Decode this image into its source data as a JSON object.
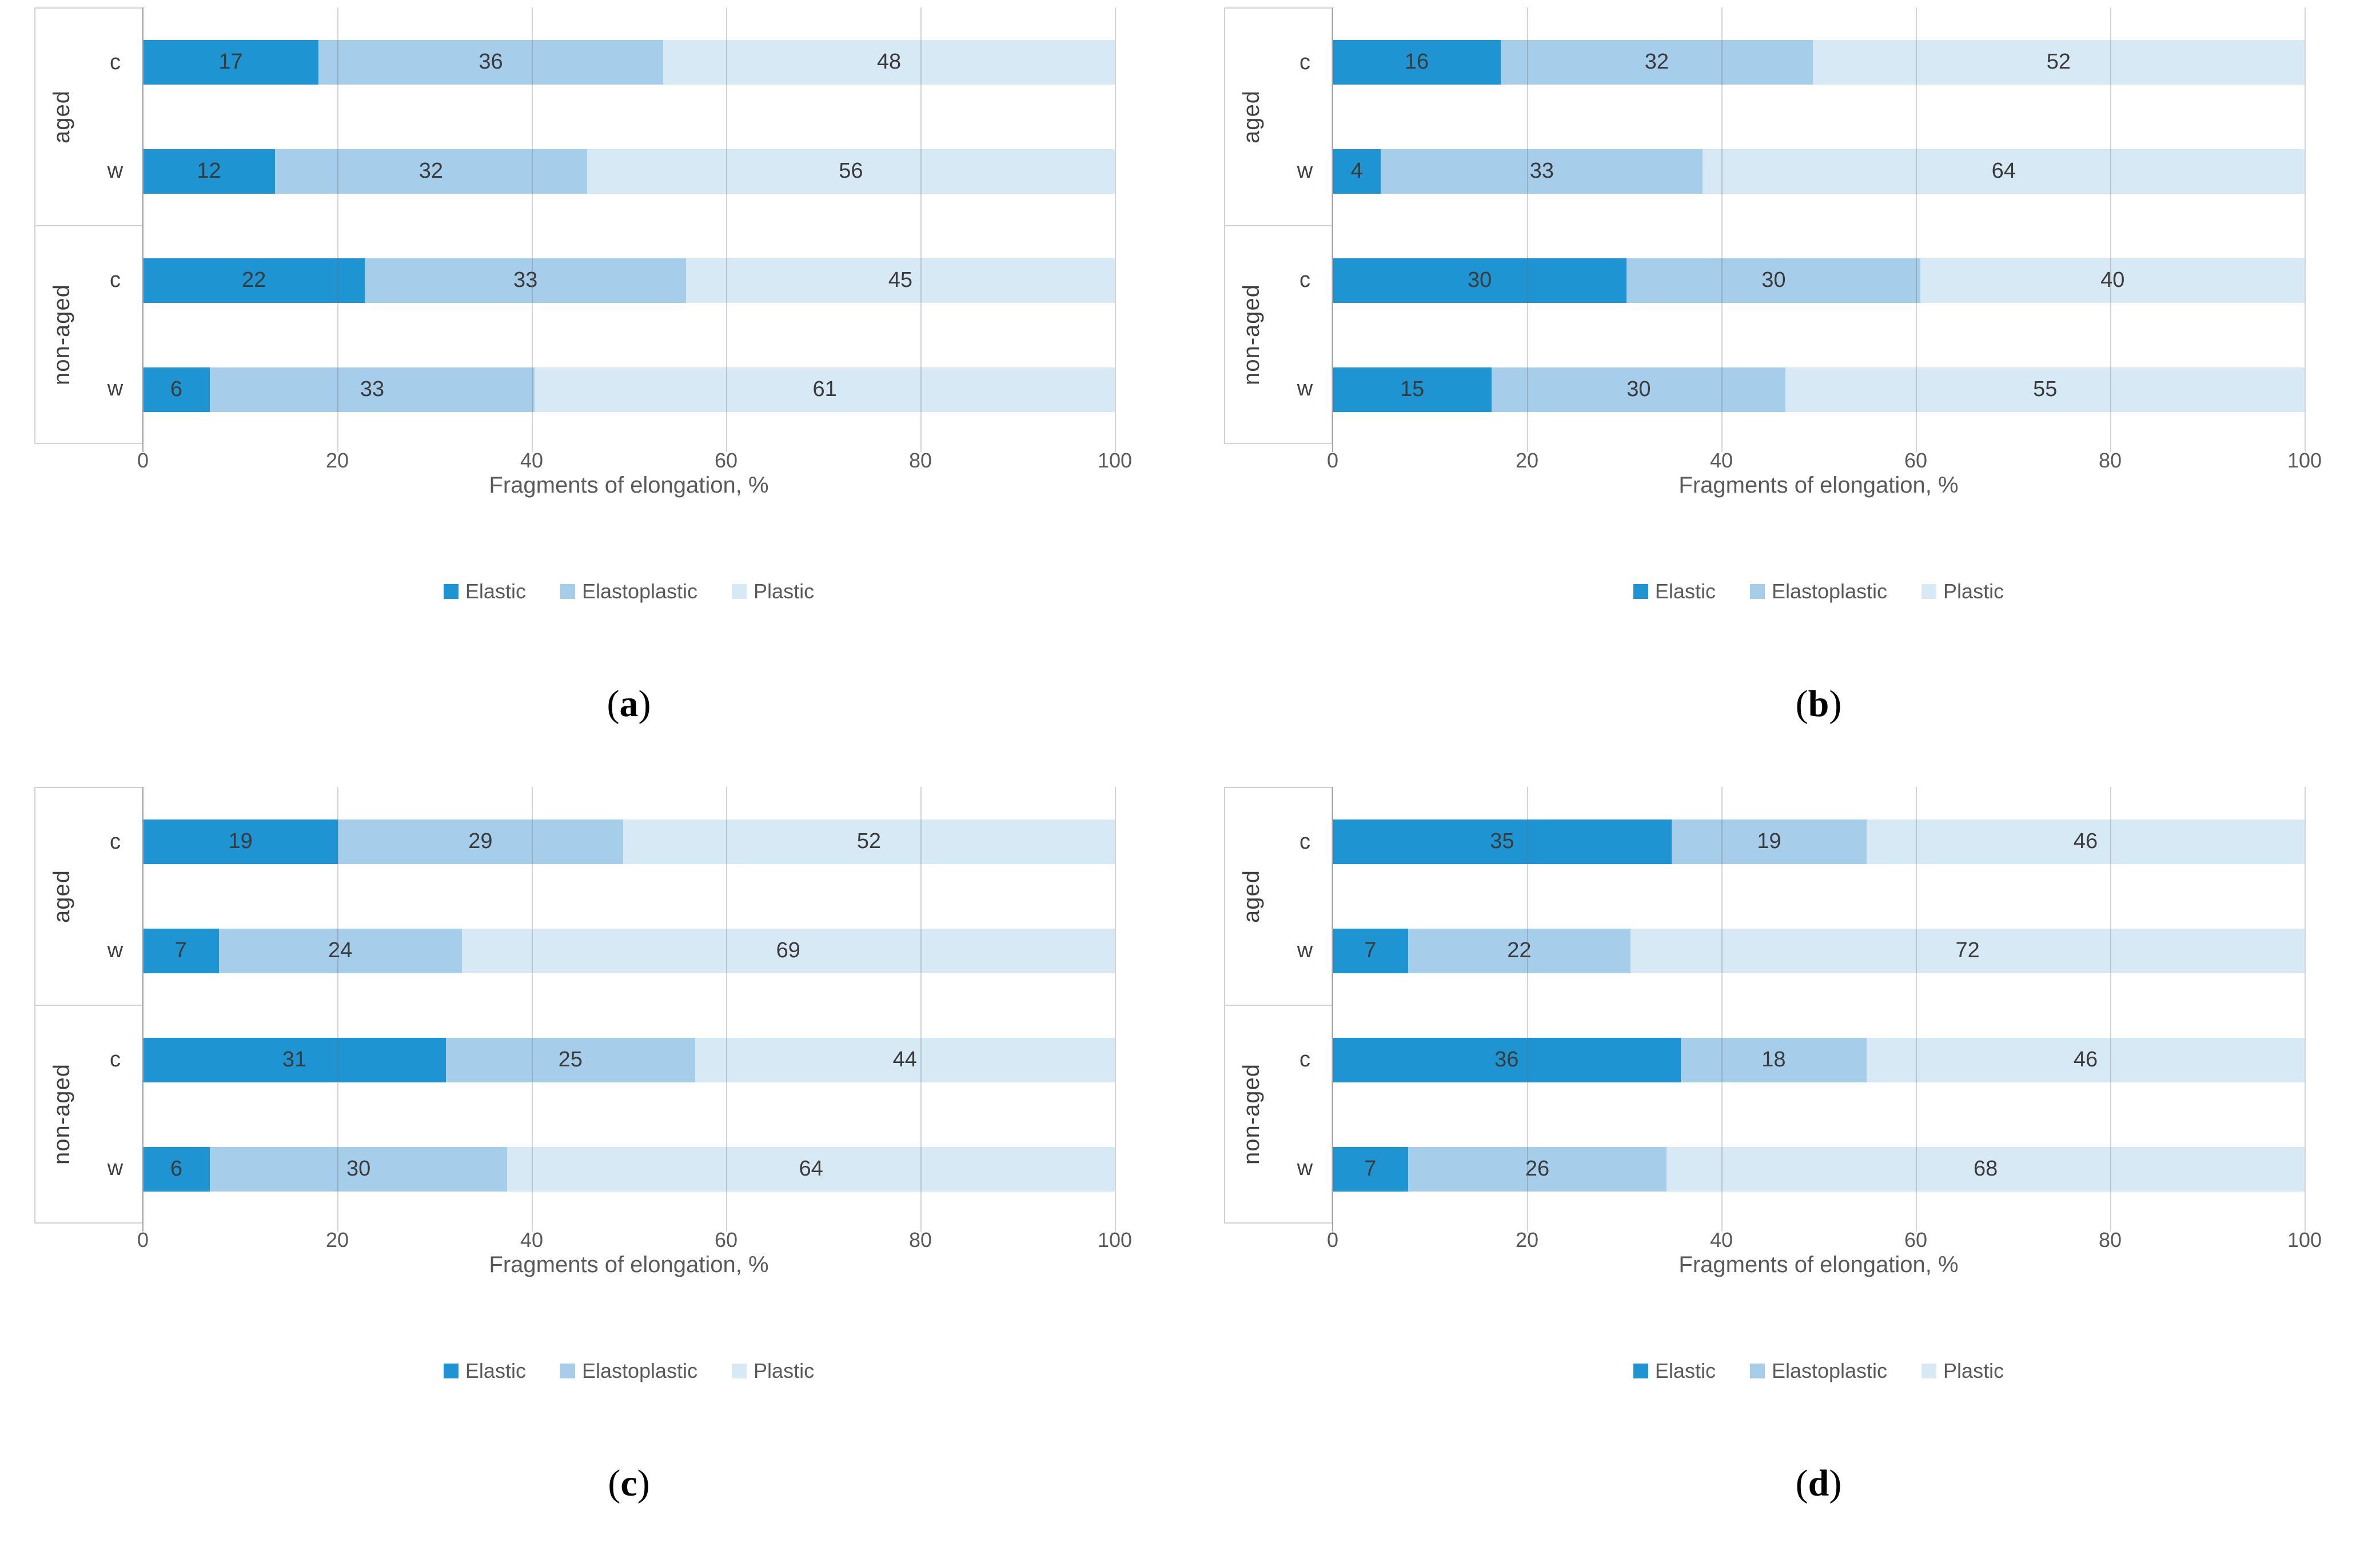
{
  "legend": {
    "items": [
      {
        "label": "Elastic",
        "color": "#1e95d2"
      },
      {
        "label": "Elastoplastic",
        "color": "#a6cdea"
      },
      {
        "label": "Plastic",
        "color": "#d8e9f6"
      }
    ]
  },
  "caption_marks": {
    "open": "(",
    "close": ")"
  },
  "chart_data": [
    {
      "type": "bar",
      "stacked": true,
      "orientation": "horizontal",
      "caption_letter": "a",
      "group_labels": [
        "aged",
        "non-aged"
      ],
      "row_labels": [
        "c",
        "w",
        "c",
        "w"
      ],
      "categories": [
        "aged c",
        "aged w",
        "non-aged c",
        "non-aged w"
      ],
      "series": [
        {
          "name": "Elastic",
          "values": [
            17,
            12,
            22,
            6
          ]
        },
        {
          "name": "Elastoplastic",
          "values": [
            36,
            32,
            33,
            33
          ]
        },
        {
          "name": "Plastic",
          "values": [
            48,
            56,
            45,
            61
          ]
        }
      ],
      "xlabel": "Fragments of elongation, %",
      "xlim": [
        0,
        100
      ],
      "xticks": [
        0,
        20,
        40,
        60,
        80,
        100
      ],
      "grid": true,
      "legend_position": "bottom"
    },
    {
      "type": "bar",
      "stacked": true,
      "orientation": "horizontal",
      "caption_letter": "b",
      "group_labels": [
        "aged",
        "non-aged"
      ],
      "row_labels": [
        "c",
        "w",
        "c",
        "w"
      ],
      "categories": [
        "aged c",
        "aged w",
        "non-aged c",
        "non-aged w"
      ],
      "series": [
        {
          "name": "Elastic",
          "values": [
            16,
            4,
            30,
            15
          ]
        },
        {
          "name": "Elastoplastic",
          "values": [
            32,
            33,
            30,
            30
          ]
        },
        {
          "name": "Plastic",
          "values": [
            52,
            64,
            40,
            55
          ]
        }
      ],
      "xlabel": "Fragments of elongation, %",
      "xlim": [
        0,
        100
      ],
      "xticks": [
        0,
        20,
        40,
        60,
        80,
        100
      ],
      "grid": true,
      "legend_position": "bottom"
    },
    {
      "type": "bar",
      "stacked": true,
      "orientation": "horizontal",
      "caption_letter": "c",
      "group_labels": [
        "aged",
        "non-aged"
      ],
      "row_labels": [
        "c",
        "w",
        "c",
        "w"
      ],
      "categories": [
        "aged c",
        "aged w",
        "non-aged c",
        "non-aged w"
      ],
      "series": [
        {
          "name": "Elastic",
          "values": [
            19,
            7,
            31,
            6
          ]
        },
        {
          "name": "Elastoplastic",
          "values": [
            29,
            24,
            25,
            30
          ]
        },
        {
          "name": "Plastic",
          "values": [
            52,
            69,
            44,
            64
          ]
        }
      ],
      "xlabel": "Fragments of elongation, %",
      "xlim": [
        0,
        100
      ],
      "xticks": [
        0,
        20,
        40,
        60,
        80,
        100
      ],
      "grid": true,
      "legend_position": "bottom"
    },
    {
      "type": "bar",
      "stacked": true,
      "orientation": "horizontal",
      "caption_letter": "d",
      "group_labels": [
        "aged",
        "non-aged"
      ],
      "row_labels": [
        "c",
        "w",
        "c",
        "w"
      ],
      "categories": [
        "aged c",
        "aged w",
        "non-aged c",
        "non-aged w"
      ],
      "series": [
        {
          "name": "Elastic",
          "values": [
            35,
            7,
            36,
            7
          ]
        },
        {
          "name": "Elastoplastic",
          "values": [
            19,
            22,
            18,
            26
          ]
        },
        {
          "name": "Plastic",
          "values": [
            46,
            72,
            46,
            68
          ]
        }
      ],
      "xlabel": "Fragments of elongation, %",
      "xlim": [
        0,
        100
      ],
      "xticks": [
        0,
        20,
        40,
        60,
        80,
        100
      ],
      "grid": true,
      "legend_position": "bottom"
    }
  ]
}
